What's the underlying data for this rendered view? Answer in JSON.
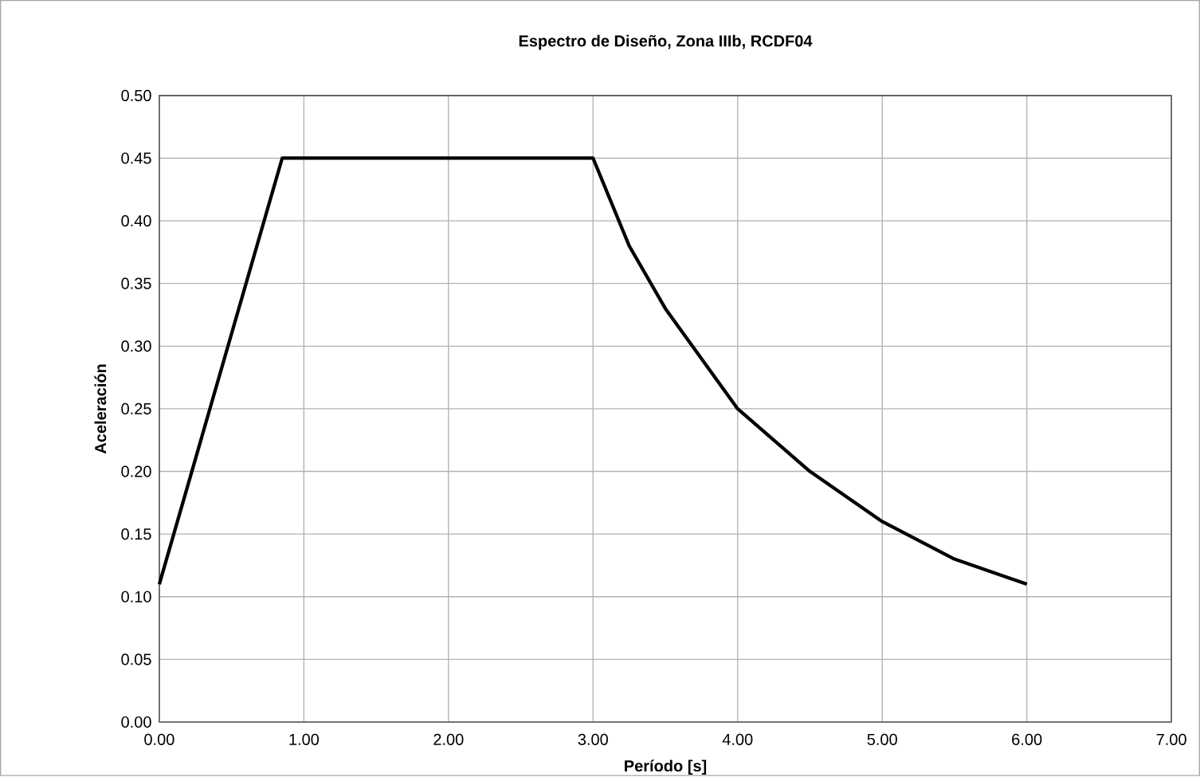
{
  "chart_data": {
    "type": "line",
    "title": "Espectro de Diseño, Zona IIIb, RCDF04",
    "xlabel": "Período [s]",
    "ylabel": "Aceleración",
    "x": [
      0,
      0.85,
      3.0,
      3.25,
      3.5,
      3.75,
      4.0,
      4.5,
      5.0,
      5.5,
      6.0
    ],
    "series": [
      {
        "color": "#000000",
        "values": [
          0.11,
          0.45,
          0.45,
          0.38,
          0.33,
          0.29,
          0.25,
          0.2,
          0.16,
          0.13,
          0.11
        ]
      }
    ],
    "xlim": [
      0,
      7
    ],
    "ylim": [
      0,
      0.5
    ],
    "xticks": [
      {
        "value": 0,
        "label": "0.00"
      },
      {
        "value": 1,
        "label": "1.00"
      },
      {
        "value": 2,
        "label": "2.00"
      },
      {
        "value": 3,
        "label": "3.00"
      },
      {
        "value": 4,
        "label": "4.00"
      },
      {
        "value": 5,
        "label": "5.00"
      },
      {
        "value": 6,
        "label": "6.00"
      },
      {
        "value": 7,
        "label": "7.00"
      }
    ],
    "yticks": [
      {
        "value": 0,
        "label": "0.00"
      },
      {
        "value": 0.05,
        "label": "0.05"
      },
      {
        "value": 0.1,
        "label": "0.10"
      },
      {
        "value": 0.15,
        "label": "0.15"
      },
      {
        "value": 0.2,
        "label": "0.20"
      },
      {
        "value": 0.25,
        "label": "0.25"
      },
      {
        "value": 0.3,
        "label": "0.30"
      },
      {
        "value": 0.35,
        "label": "0.35"
      },
      {
        "value": 0.4,
        "label": "0.40"
      },
      {
        "value": 0.45,
        "label": "0.45"
      },
      {
        "value": 0.5,
        "label": "0.50"
      }
    ],
    "grid": true,
    "marker": "none",
    "line_style": "solid"
  }
}
